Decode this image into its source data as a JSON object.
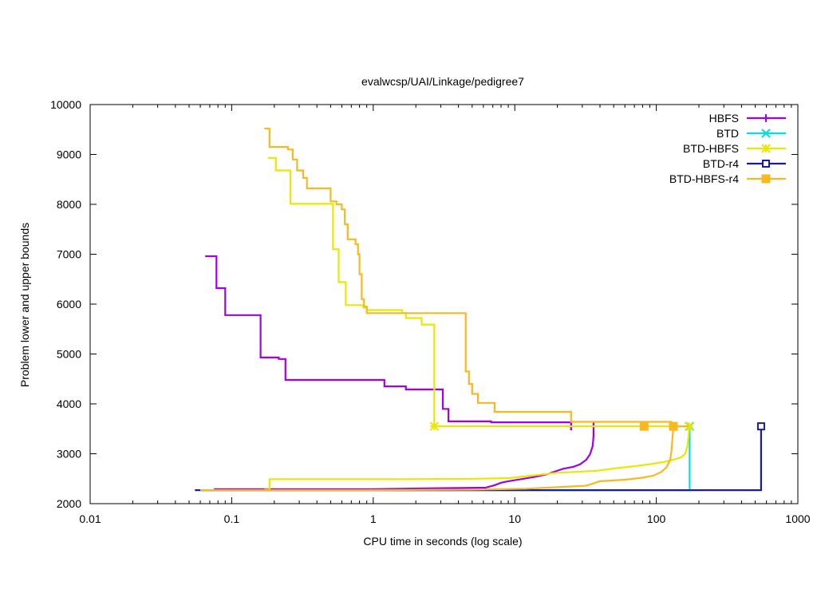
{
  "chart_data": {
    "type": "line",
    "title": "evalwcsp/UAI/Linkage/pedigree7",
    "xlabel": "CPU time in seconds (log scale)",
    "ylabel": "Problem lower and upper bounds",
    "xscale": "log",
    "xlim": [
      0.01,
      1000
    ],
    "ylim": [
      2000,
      10000
    ],
    "xticks": [
      0.01,
      0.1,
      1,
      10,
      100,
      1000
    ],
    "xtick_labels": [
      "0.01",
      "0.1",
      "1",
      "10",
      "100",
      "1000"
    ],
    "yticks": [
      2000,
      3000,
      4000,
      5000,
      6000,
      7000,
      8000,
      9000,
      10000
    ],
    "ytick_labels": [
      "2000",
      "3000",
      "4000",
      "5000",
      "6000",
      "7000",
      "8000",
      "9000",
      "10000"
    ],
    "grid": false,
    "legend_position": "top-right",
    "series": [
      {
        "name": "HBFS",
        "color": "#a000f0",
        "marker": "plus",
        "upper": [
          [
            0.065,
            6960
          ],
          [
            0.078,
            6960
          ],
          [
            0.078,
            6320
          ],
          [
            0.09,
            6320
          ],
          [
            0.09,
            5780
          ],
          [
            0.16,
            5780
          ],
          [
            0.16,
            4930
          ],
          [
            0.215,
            4930
          ],
          [
            0.215,
            4900
          ],
          [
            0.24,
            4900
          ],
          [
            0.24,
            4480
          ],
          [
            1.2,
            4480
          ],
          [
            1.2,
            4350
          ],
          [
            1.7,
            4350
          ],
          [
            1.7,
            4290
          ],
          [
            3.1,
            4290
          ],
          [
            3.1,
            3900
          ],
          [
            3.4,
            3900
          ],
          [
            3.4,
            3650
          ],
          [
            6.8,
            3650
          ],
          [
            6.8,
            3630
          ],
          [
            25,
            3630
          ],
          [
            25,
            3470
          ]
        ],
        "lower": [
          [
            0.075,
            2290
          ],
          [
            0.32,
            2290
          ],
          [
            1.0,
            2290
          ],
          [
            3.0,
            2310
          ],
          [
            6.2,
            2320
          ],
          [
            7.2,
            2370
          ],
          [
            8.0,
            2420
          ],
          [
            9.0,
            2450
          ],
          [
            11,
            2490
          ],
          [
            14,
            2540
          ],
          [
            17,
            2590
          ],
          [
            19,
            2640
          ],
          [
            22,
            2700
          ],
          [
            26,
            2740
          ],
          [
            29,
            2790
          ],
          [
            32,
            2880
          ],
          [
            34,
            2990
          ],
          [
            35.5,
            3150
          ],
          [
            36,
            3350
          ],
          [
            36,
            3630
          ]
        ],
        "markers": [
          [
            25,
            3550
          ]
        ]
      },
      {
        "name": "BTD",
        "color": "#00e0e0",
        "marker": "cross",
        "upper": [
          [
            172,
            3550
          ],
          [
            172,
            3550
          ]
        ],
        "lower": [
          [
            0.06,
            2270
          ],
          [
            172,
            2270
          ],
          [
            172,
            3550
          ]
        ],
        "markers": [
          [
            172,
            3550
          ]
        ]
      },
      {
        "name": "BTD-HBFS",
        "color": "#e8e800",
        "marker": "star",
        "upper": [
          [
            0.18,
            8930
          ],
          [
            0.205,
            8930
          ],
          [
            0.205,
            8680
          ],
          [
            0.26,
            8680
          ],
          [
            0.26,
            8010
          ],
          [
            0.52,
            8010
          ],
          [
            0.52,
            7100
          ],
          [
            0.57,
            7100
          ],
          [
            0.57,
            6440
          ],
          [
            0.64,
            6440
          ],
          [
            0.64,
            5980
          ],
          [
            0.85,
            5980
          ],
          [
            0.85,
            5930
          ],
          [
            0.9,
            5930
          ],
          [
            0.9,
            5880
          ],
          [
            1.6,
            5880
          ],
          [
            1.6,
            5820
          ],
          [
            1.7,
            5820
          ],
          [
            1.7,
            5720
          ],
          [
            2.2,
            5720
          ],
          [
            2.2,
            5590
          ],
          [
            2.7,
            5590
          ],
          [
            2.7,
            3550
          ],
          [
            170,
            3550
          ]
        ],
        "lower": [
          [
            0.17,
            2280
          ],
          [
            0.185,
            2280
          ],
          [
            0.185,
            2490
          ],
          [
            1.5,
            2490
          ],
          [
            5,
            2500
          ],
          [
            9,
            2510
          ],
          [
            12,
            2550
          ],
          [
            20,
            2620
          ],
          [
            38,
            2660
          ],
          [
            52,
            2710
          ],
          [
            70,
            2750
          ],
          [
            90,
            2790
          ],
          [
            115,
            2840
          ],
          [
            135,
            2890
          ],
          [
            150,
            2930
          ],
          [
            160,
            3000
          ],
          [
            166,
            3150
          ],
          [
            169,
            3350
          ],
          [
            171,
            3550
          ]
        ],
        "markers": [
          [
            2.7,
            3550
          ],
          [
            170,
            3550
          ]
        ]
      },
      {
        "name": "BTD-r4",
        "color": "#1a1aaa",
        "marker": "square-open",
        "upper": [
          [
            550,
            3550
          ],
          [
            550,
            3550
          ]
        ],
        "lower": [
          [
            0.055,
            2270
          ],
          [
            550,
            2270
          ],
          [
            550,
            3550
          ]
        ],
        "markers": [
          [
            550,
            3550
          ]
        ]
      },
      {
        "name": "BTD-HBFS-r4",
        "color": "#f8b820",
        "marker": "square-filled",
        "upper": [
          [
            0.17,
            9520
          ],
          [
            0.185,
            9520
          ],
          [
            0.185,
            9150
          ],
          [
            0.25,
            9150
          ],
          [
            0.25,
            9100
          ],
          [
            0.27,
            9100
          ],
          [
            0.27,
            8900
          ],
          [
            0.29,
            8900
          ],
          [
            0.29,
            8680
          ],
          [
            0.32,
            8680
          ],
          [
            0.32,
            8530
          ],
          [
            0.34,
            8530
          ],
          [
            0.34,
            8320
          ],
          [
            0.5,
            8320
          ],
          [
            0.5,
            8060
          ],
          [
            0.55,
            8060
          ],
          [
            0.55,
            8000
          ],
          [
            0.6,
            8000
          ],
          [
            0.6,
            7900
          ],
          [
            0.63,
            7900
          ],
          [
            0.63,
            7600
          ],
          [
            0.66,
            7600
          ],
          [
            0.66,
            7300
          ],
          [
            0.75,
            7300
          ],
          [
            0.75,
            7200
          ],
          [
            0.78,
            7200
          ],
          [
            0.78,
            7000
          ],
          [
            0.8,
            7000
          ],
          [
            0.8,
            6600
          ],
          [
            0.83,
            6600
          ],
          [
            0.83,
            6100
          ],
          [
            0.86,
            6100
          ],
          [
            0.86,
            5950
          ],
          [
            0.9,
            5950
          ],
          [
            0.9,
            5820
          ],
          [
            4.5,
            5820
          ],
          [
            4.5,
            4650
          ],
          [
            4.75,
            4650
          ],
          [
            4.75,
            4400
          ],
          [
            5,
            4400
          ],
          [
            5,
            4200
          ],
          [
            5.5,
            4200
          ],
          [
            5.5,
            4020
          ],
          [
            7.2,
            4020
          ],
          [
            7.2,
            3840
          ],
          [
            25,
            3840
          ],
          [
            25,
            3640
          ],
          [
            130,
            3640
          ]
        ],
        "lower": [
          [
            0.06,
            2270
          ],
          [
            1.0,
            2270
          ],
          [
            5.0,
            2280
          ],
          [
            12,
            2300
          ],
          [
            20,
            2330
          ],
          [
            32,
            2360
          ],
          [
            40,
            2450
          ],
          [
            60,
            2480
          ],
          [
            80,
            2520
          ],
          [
            95,
            2560
          ],
          [
            108,
            2630
          ],
          [
            118,
            2730
          ],
          [
            125,
            2870
          ],
          [
            128,
            3050
          ],
          [
            130,
            3300
          ],
          [
            132,
            3550
          ],
          [
            170,
            3550
          ]
        ],
        "markers": [
          [
            82,
            3550
          ],
          [
            132,
            3550
          ]
        ]
      }
    ]
  }
}
